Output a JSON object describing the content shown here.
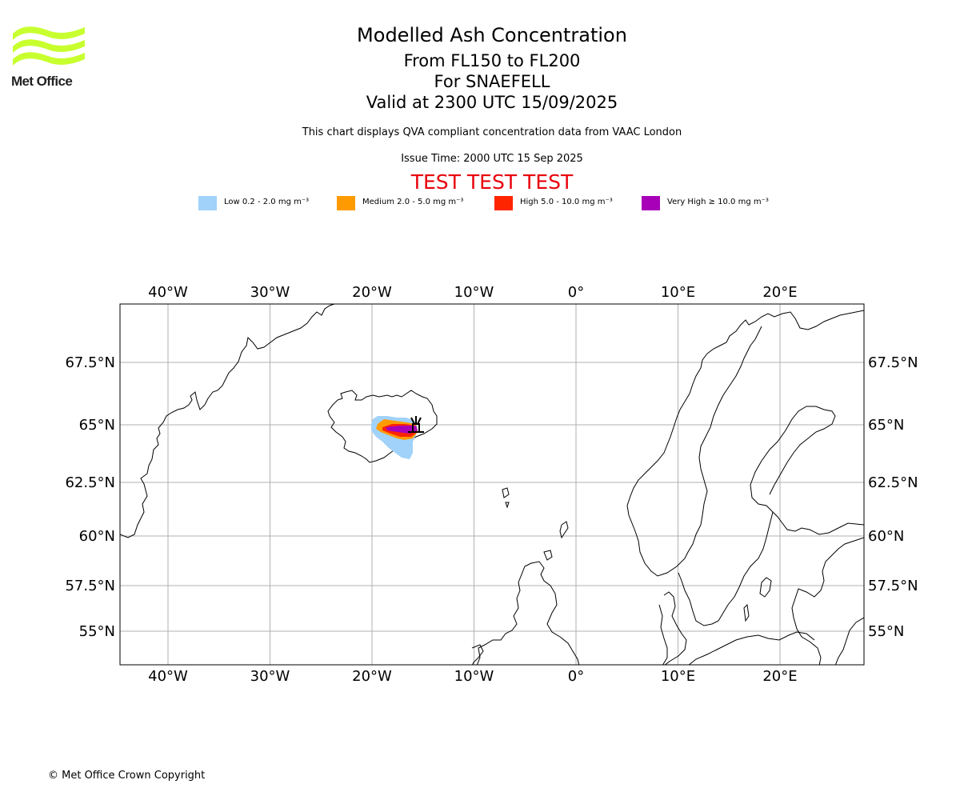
{
  "header": {
    "logo_text": "Met Office",
    "title": "Modelled Ash Concentration",
    "level_range": "From FL150 to FL200",
    "volcano_line": "For SNAEFELL",
    "valid_line": "Valid at 2300 UTC 15/09/2025",
    "subtitle": "This chart displays QVA compliant concentration data from VAAC London",
    "issue_time": "Issue Time: 2000 UTC 15 Sep 2025",
    "test_banner": "TEST TEST TEST"
  },
  "legend": {
    "items": [
      {
        "label": "Low 0.2 - 2.0 mg m⁻³",
        "color": "#a0d2fa"
      },
      {
        "label": "Medium 2.0 - 5.0 mg m⁻³",
        "color": "#ff9a00"
      },
      {
        "label": "High 5.0 - 10.0 mg m⁻³",
        "color": "#ff2400"
      },
      {
        "label": "Very High  ≥  10.0 mg m⁻³",
        "color": "#a800b8"
      }
    ]
  },
  "map": {
    "lon_labels": [
      "40°W",
      "30°W",
      "20°W",
      "10°W",
      "0°",
      "10°E",
      "20°E"
    ],
    "lat_labels": [
      "67.5°N",
      "65°N",
      "62.5°N",
      "60°N",
      "57.5°N",
      "55°N"
    ],
    "lon_values": [
      -40,
      -30,
      -20,
      -10,
      0,
      10,
      20
    ],
    "lat_values": [
      67.5,
      65,
      62.5,
      60,
      57.5,
      55
    ],
    "grid": true,
    "volcano_name": "SNAEFELL",
    "volcano_lon": -15.6,
    "volcano_lat": 64.8,
    "colors": {
      "grid": "#b0b0b0",
      "coast": "#000000"
    }
  },
  "footer": {
    "copyright": "© Met Office Crown Copyright"
  }
}
